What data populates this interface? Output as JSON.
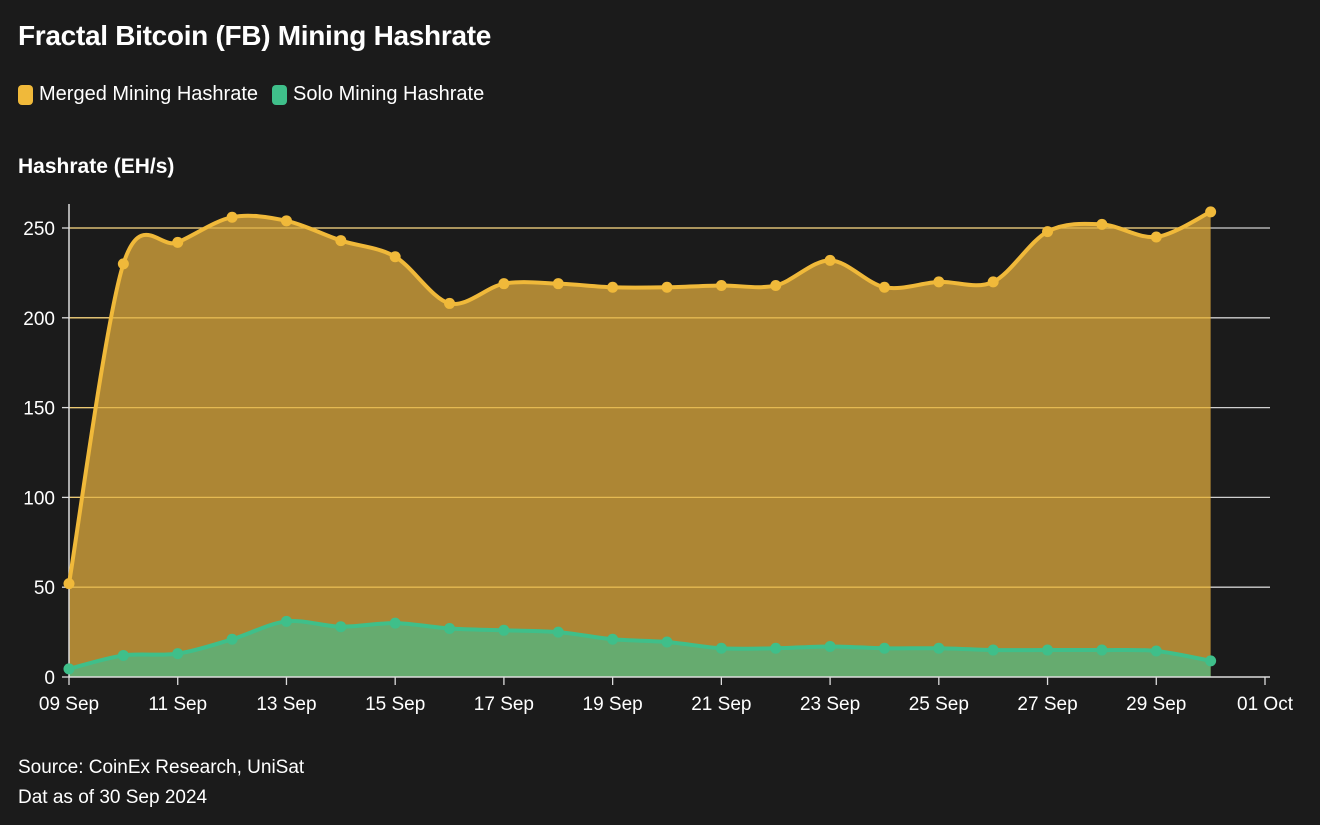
{
  "title": "Fractal Bitcoin (FB) Mining Hashrate",
  "legend": [
    {
      "label": "Merged Mining Hashrate",
      "color": "#f0b93a"
    },
    {
      "label": "Solo Mining Hashrate",
      "color": "#3fbf8a"
    }
  ],
  "source": "Source: CoinEx Research, UniSat",
  "date_note": "Dat as of 30 Sep 2024",
  "chart_data": {
    "type": "area",
    "title": "Fractal Bitcoin (FB) Mining Hashrate",
    "ylabel": "Hashrate (EH/s)",
    "xlabel": "",
    "ylim": [
      0,
      263
    ],
    "yticks": [
      0,
      50,
      100,
      150,
      200,
      250
    ],
    "x_start": "2024-09-09",
    "x_days_range": [
      0,
      22
    ],
    "xticks": [
      {
        "day": 0,
        "label": "09 Sep"
      },
      {
        "day": 2,
        "label": "11 Sep"
      },
      {
        "day": 4,
        "label": "13 Sep"
      },
      {
        "day": 6,
        "label": "15 Sep"
      },
      {
        "day": 8,
        "label": "17 Sep"
      },
      {
        "day": 10,
        "label": "19 Sep"
      },
      {
        "day": 12,
        "label": "21 Sep"
      },
      {
        "day": 14,
        "label": "23 Sep"
      },
      {
        "day": 16,
        "label": "25 Sep"
      },
      {
        "day": 18,
        "label": "27 Sep"
      },
      {
        "day": 20,
        "label": "29 Sep"
      },
      {
        "day": 22,
        "label": "01 Oct"
      }
    ],
    "grid": true,
    "series": [
      {
        "name": "Merged Mining Hashrate",
        "color": "#f0b93a",
        "fill": "#ad8634",
        "values": [
          52,
          230,
          242,
          256,
          254,
          243,
          234,
          208,
          219,
          219,
          217,
          217,
          218,
          218,
          232,
          217,
          220,
          220,
          248,
          252,
          245,
          259
        ]
      },
      {
        "name": "Solo Mining Hashrate",
        "color": "#3fbf8a",
        "fill": "#66ab6f",
        "values": [
          4.5,
          12,
          13,
          21,
          31,
          28,
          30,
          27,
          26,
          25,
          21,
          19.5,
          16,
          16,
          17,
          16,
          16,
          15,
          15,
          15,
          14.5,
          9
        ]
      }
    ]
  }
}
